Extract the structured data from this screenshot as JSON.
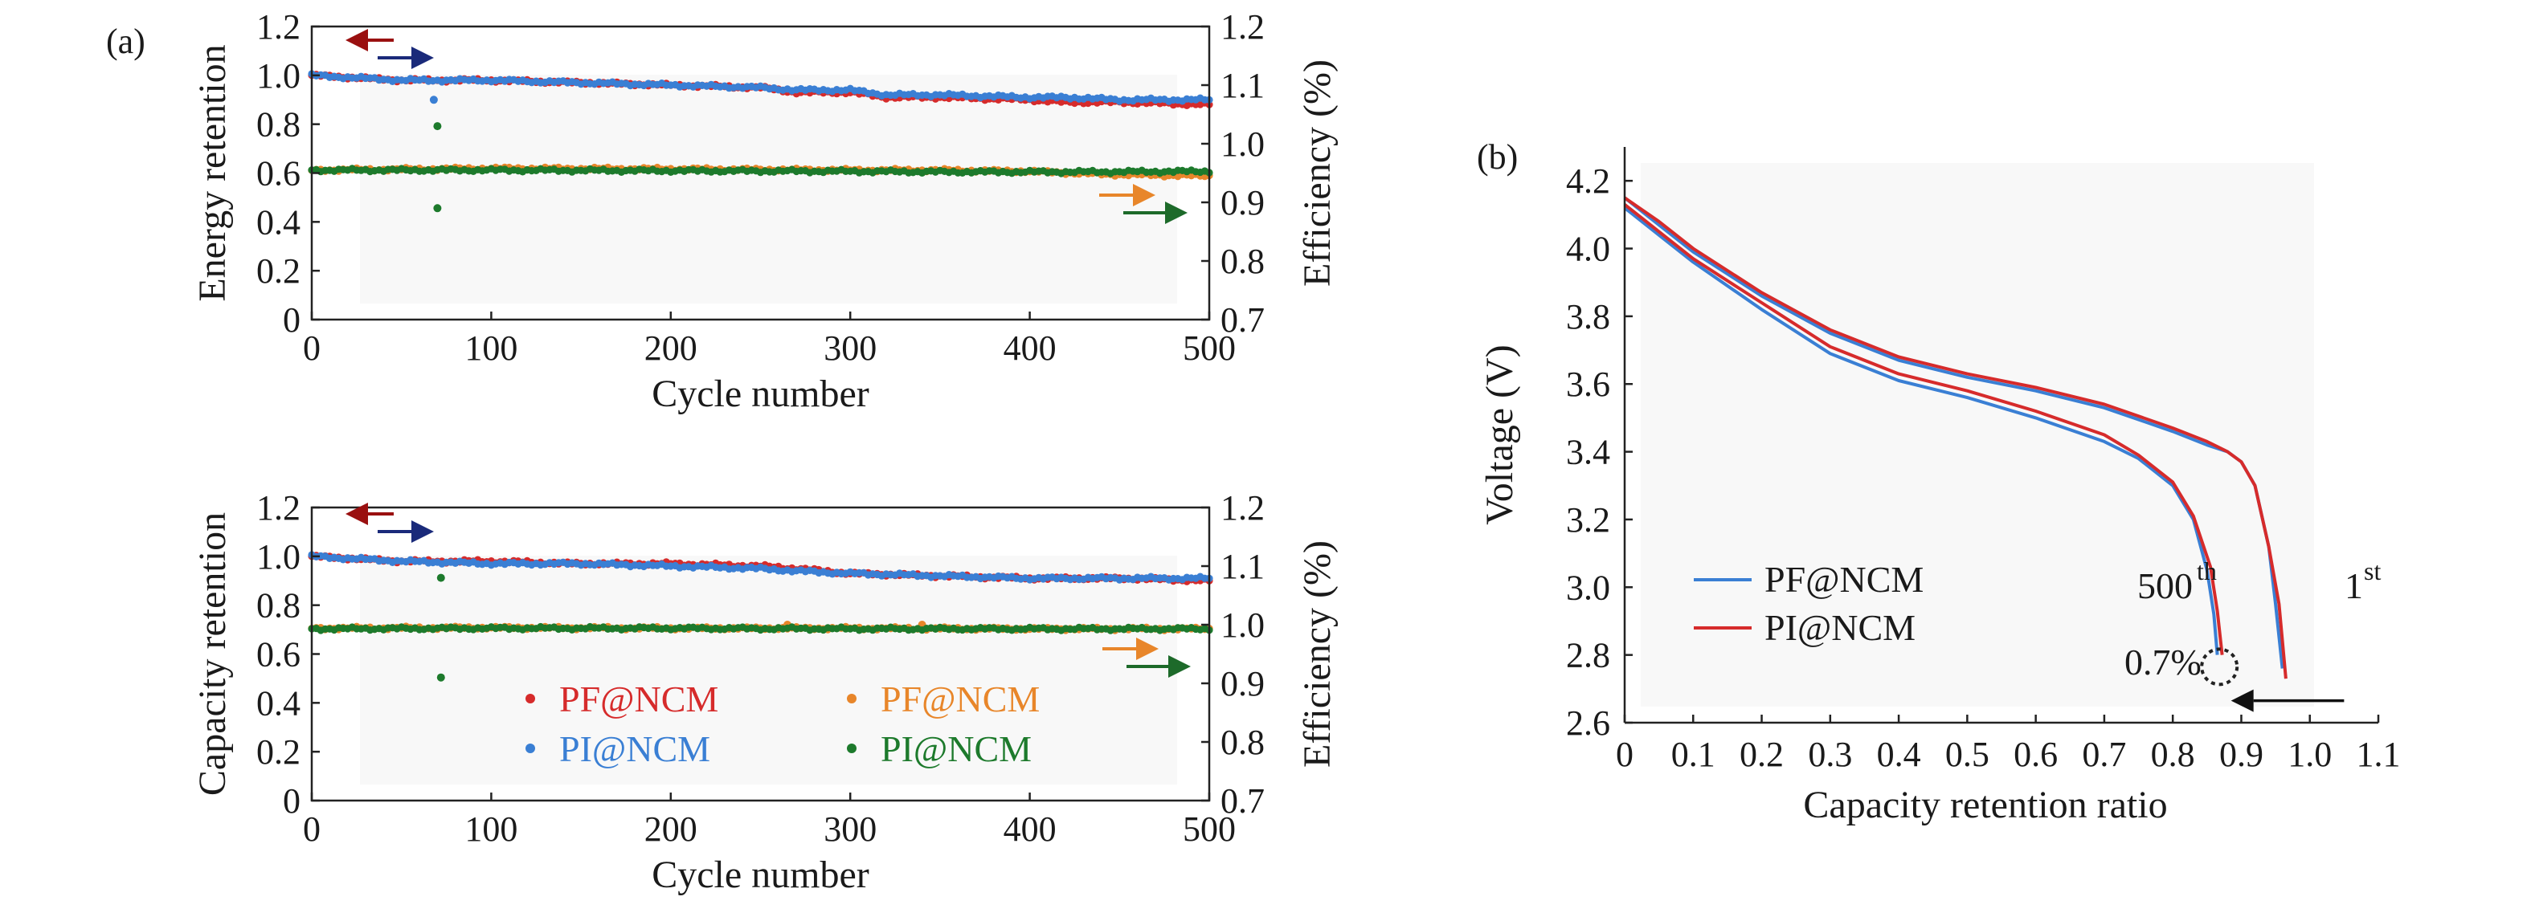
{
  "panels": {
    "a": "(a)",
    "b": "(b)"
  },
  "colors": {
    "PF_retention": "#d62b2b",
    "PI_retention": "#3a7fd4",
    "PF_efficiency": "#e8862a",
    "PI_efficiency": "#1d7a2c",
    "arrow_red": "#9a1010",
    "arrow_navy": "#1a2a7a",
    "arrow_orange": "#e8862a",
    "arrow_green": "#1d6a2a"
  },
  "chart_data": [
    {
      "id": "a-top",
      "type": "scatter",
      "xlabel": "Cycle number",
      "ylabel": "Energy retention",
      "y2label": "Efficiency (%)",
      "xlim": [
        0,
        500
      ],
      "ylim": [
        0,
        1.2
      ],
      "y2lim": [
        0.7,
        1.2
      ],
      "xticks": [
        "0",
        "100",
        "200",
        "300",
        "400",
        "500"
      ],
      "yticks": [
        "0",
        "0.2",
        "0.4",
        "0.6",
        "0.8",
        "1.0",
        "1.2"
      ],
      "y2ticks": [
        "0.7",
        "0.8",
        "0.9",
        "1.0",
        "1.1",
        "1.2"
      ],
      "series": [
        {
          "name": "PF@NCM",
          "axis": "left",
          "color": "#d62b2b",
          "x": [
            0,
            50,
            100,
            150,
            200,
            250,
            270,
            300,
            320,
            350,
            400,
            420,
            450,
            500
          ],
          "y": [
            1.0,
            0.98,
            0.98,
            0.97,
            0.96,
            0.95,
            0.93,
            0.93,
            0.91,
            0.91,
            0.9,
            0.89,
            0.89,
            0.88
          ]
        },
        {
          "name": "PI@NCM",
          "axis": "left",
          "color": "#3a7fd4",
          "x": [
            0,
            50,
            100,
            150,
            200,
            250,
            270,
            300,
            320,
            350,
            400,
            420,
            450,
            500
          ],
          "y": [
            1.0,
            0.98,
            0.98,
            0.97,
            0.96,
            0.95,
            0.94,
            0.94,
            0.92,
            0.92,
            0.91,
            0.91,
            0.9,
            0.9
          ],
          "outliers": [
            [
              68,
              0.9
            ]
          ]
        },
        {
          "name": "PF@NCM",
          "axis": "right",
          "color": "#e8862a",
          "x": [
            0,
            100,
            200,
            300,
            350,
            400,
            440,
            500
          ],
          "y": [
            0.955,
            0.958,
            0.957,
            0.955,
            0.955,
            0.953,
            0.948,
            0.945
          ]
        },
        {
          "name": "PI@NCM",
          "axis": "right",
          "color": "#1d7a2c",
          "x": [
            0,
            100,
            200,
            300,
            350,
            400,
            440,
            500
          ],
          "y": [
            0.955,
            0.955,
            0.954,
            0.953,
            0.952,
            0.952,
            0.952,
            0.953
          ],
          "outliers": [
            [
              70,
              1.03
            ],
            [
              70,
              0.89
            ]
          ]
        }
      ]
    },
    {
      "id": "a-bottom",
      "type": "scatter",
      "xlabel": "Cycle number",
      "ylabel": "Capacity retention",
      "y2label": "Efficiency (%)",
      "xlim": [
        0,
        500
      ],
      "ylim": [
        0,
        1.2
      ],
      "y2lim": [
        0.7,
        1.2
      ],
      "xticks": [
        "0",
        "100",
        "200",
        "300",
        "400",
        "500"
      ],
      "yticks": [
        "0",
        "0.2",
        "0.4",
        "0.6",
        "0.8",
        "1.0",
        "1.2"
      ],
      "y2ticks": [
        "0.7",
        "0.8",
        "0.9",
        "1.0",
        "1.1",
        "1.2"
      ],
      "legend": [
        {
          "name": "PF@NCM",
          "color": "#d62b2b"
        },
        {
          "name": "PF@NCM",
          "color": "#e8862a"
        },
        {
          "name": "PI@NCM",
          "color": "#3a7fd4"
        },
        {
          "name": "PI@NCM",
          "color": "#1d7a2c"
        }
      ],
      "series": [
        {
          "name": "PF@NCM",
          "axis": "left",
          "color": "#d62b2b",
          "x": [
            0,
            50,
            100,
            150,
            200,
            250,
            270,
            300,
            350,
            400,
            450,
            500
          ],
          "y": [
            1.0,
            0.98,
            0.98,
            0.97,
            0.97,
            0.96,
            0.95,
            0.93,
            0.92,
            0.91,
            0.91,
            0.9
          ]
        },
        {
          "name": "PI@NCM",
          "axis": "left",
          "color": "#3a7fd4",
          "x": [
            0,
            50,
            100,
            150,
            200,
            250,
            270,
            300,
            350,
            400,
            450,
            500
          ],
          "y": [
            1.0,
            0.98,
            0.97,
            0.97,
            0.96,
            0.95,
            0.94,
            0.93,
            0.92,
            0.91,
            0.91,
            0.91
          ]
        },
        {
          "name": "PF@NCM",
          "axis": "right",
          "color": "#e8862a",
          "x": [
            0,
            100,
            200,
            300,
            400,
            500
          ],
          "y": [
            0.994,
            0.995,
            0.994,
            0.994,
            0.993,
            0.993
          ],
          "outliers": [
            [
              265,
              1.0
            ],
            [
              340,
              1.0
            ]
          ]
        },
        {
          "name": "PI@NCM",
          "axis": "right",
          "color": "#1d7a2c",
          "x": [
            0,
            100,
            200,
            300,
            400,
            500
          ],
          "y": [
            0.993,
            0.994,
            0.994,
            0.993,
            0.993,
            0.993
          ],
          "outliers": [
            [
              72,
              1.08
            ],
            [
              72,
              0.91
            ]
          ]
        }
      ]
    },
    {
      "id": "b",
      "type": "line",
      "xlabel": "Capacity retention ratio",
      "ylabel": "Voltage (V)",
      "xlim": [
        0,
        1.1
      ],
      "ylim": [
        2.6,
        4.3
      ],
      "xticks": [
        "0",
        "0.1",
        "0.2",
        "0.3",
        "0.4",
        "0.5",
        "0.6",
        "0.7",
        "0.8",
        "0.9",
        "1.0",
        "1.1"
      ],
      "yticks": [
        "2.6",
        "2.8",
        "3.0",
        "3.2",
        "3.4",
        "3.6",
        "3.8",
        "4.0",
        "4.2"
      ],
      "legend": [
        {
          "name": "PF@NCM",
          "color": "#3a7fd4"
        },
        {
          "name": "PI@NCM",
          "color": "#d62b2b"
        }
      ],
      "annotations": {
        "cycle500": "500",
        "cycle500_sup": "th",
        "cycle1": "1",
        "cycle1_sup": "st",
        "diff": "0.7%"
      },
      "series": [
        {
          "name": "PF@NCM",
          "curve": "1st",
          "color": "#3a7fd4",
          "x": [
            0,
            0.05,
            0.1,
            0.2,
            0.3,
            0.4,
            0.5,
            0.6,
            0.7,
            0.8,
            0.85,
            0.88,
            0.9,
            0.92,
            0.94,
            0.95,
            0.96
          ],
          "y": [
            4.15,
            4.07,
            3.99,
            3.86,
            3.75,
            3.67,
            3.62,
            3.58,
            3.53,
            3.46,
            3.42,
            3.4,
            3.37,
            3.3,
            3.12,
            2.95,
            2.76
          ]
        },
        {
          "name": "PI@NCM",
          "curve": "1st",
          "color": "#d62b2b",
          "x": [
            0,
            0.05,
            0.1,
            0.2,
            0.3,
            0.4,
            0.5,
            0.6,
            0.7,
            0.8,
            0.85,
            0.88,
            0.9,
            0.92,
            0.94,
            0.955,
            0.965
          ],
          "y": [
            4.15,
            4.08,
            4.0,
            3.87,
            3.76,
            3.68,
            3.63,
            3.59,
            3.54,
            3.47,
            3.43,
            3.4,
            3.37,
            3.3,
            3.12,
            2.95,
            2.73
          ]
        },
        {
          "name": "PF@NCM",
          "curve": "500th",
          "color": "#3a7fd4",
          "x": [
            0,
            0.05,
            0.1,
            0.2,
            0.3,
            0.4,
            0.5,
            0.6,
            0.7,
            0.75,
            0.8,
            0.83,
            0.85,
            0.86,
            0.865
          ],
          "y": [
            4.12,
            4.04,
            3.96,
            3.82,
            3.69,
            3.61,
            3.56,
            3.5,
            3.43,
            3.38,
            3.3,
            3.2,
            3.05,
            2.92,
            2.8
          ]
        },
        {
          "name": "PI@NCM",
          "curve": "500th",
          "color": "#d62b2b",
          "x": [
            0,
            0.05,
            0.1,
            0.2,
            0.3,
            0.4,
            0.5,
            0.6,
            0.7,
            0.75,
            0.8,
            0.83,
            0.855,
            0.865,
            0.872
          ],
          "y": [
            4.13,
            4.05,
            3.97,
            3.84,
            3.71,
            3.63,
            3.58,
            3.52,
            3.45,
            3.39,
            3.31,
            3.21,
            3.06,
            2.93,
            2.8
          ]
        }
      ]
    }
  ]
}
